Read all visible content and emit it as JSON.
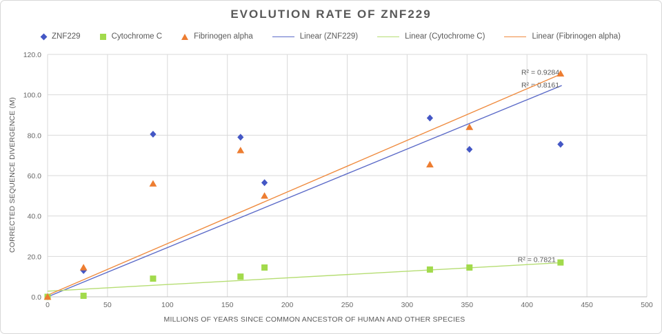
{
  "chart_data": {
    "type": "scatter",
    "title": "EVOLUTION RATE OF ZNF229",
    "xlabel": "MILLIONS OF YEARS SINCE COMMON ANCESTOR OF HUMAN AND OTHER SPECIES",
    "ylabel": "CORRECTED SEQUENCE DIVERGENCE (M)",
    "xlim": [
      0,
      500
    ],
    "ylim": [
      0,
      120
    ],
    "x_ticks": [
      0,
      50,
      100,
      150,
      200,
      250,
      300,
      350,
      400,
      450,
      500
    ],
    "y_ticks": [
      0,
      20,
      40,
      60,
      80,
      100,
      120
    ],
    "y_tick_labels": [
      "0.0",
      "20.0",
      "40.0",
      "60.0",
      "80.0",
      "100.0",
      "120.0"
    ],
    "grid": true,
    "grid_color": "#d9d9d9",
    "axis_line_color": "#c0c0c0",
    "text_color": "#595959",
    "legend_position": "top",
    "series": [
      {
        "name": "ZNF229",
        "marker": "diamond",
        "color": "#4457c5",
        "points": [
          [
            0,
            0
          ],
          [
            30,
            13
          ],
          [
            88,
            80.5
          ],
          [
            161,
            79
          ],
          [
            181,
            56.5
          ],
          [
            319,
            88.5
          ],
          [
            352,
            73
          ],
          [
            428,
            75.5
          ]
        ]
      },
      {
        "name": "Cytochrome C",
        "marker": "square",
        "color": "#a2da4c",
        "points": [
          [
            0,
            0
          ],
          [
            30,
            0.5
          ],
          [
            88,
            9
          ],
          [
            161,
            10
          ],
          [
            181,
            14.5
          ],
          [
            319,
            13.5
          ],
          [
            352,
            14.5
          ],
          [
            428,
            17
          ]
        ]
      },
      {
        "name": "Fibrinogen alpha",
        "marker": "triangle",
        "color": "#ed7d31",
        "points": [
          [
            0,
            0
          ],
          [
            30,
            14.5
          ],
          [
            88,
            56
          ],
          [
            161,
            72.5
          ],
          [
            181,
            50
          ],
          [
            319,
            65.5
          ],
          [
            352,
            84
          ],
          [
            428,
            110.5
          ]
        ]
      }
    ],
    "trendlines": [
      {
        "name": "Linear (ZNF229)",
        "color": "#5c6bc8",
        "x_start": 0,
        "y_start": 0,
        "x_end": 429,
        "y_end": 104.6,
        "r2": "R² = 0.8161",
        "r2_x": 427,
        "r2_y": 103.6
      },
      {
        "name": "Linear (Cytochrome C)",
        "color": "#b5dd72",
        "x_start": 0,
        "y_start": 2.8,
        "x_end": 429,
        "y_end": 16.9,
        "r2": "R² = 0.7821",
        "r2_x": 424,
        "r2_y": 17.2
      },
      {
        "name": "Linear (Fibrinogen alpha)",
        "color": "#ef8b3f",
        "x_start": 0,
        "y_start": 0.8,
        "x_end": 429,
        "y_end": 110.4,
        "r2": "R² = 0.9284",
        "r2_x": 427,
        "r2_y": 110.0
      }
    ]
  }
}
